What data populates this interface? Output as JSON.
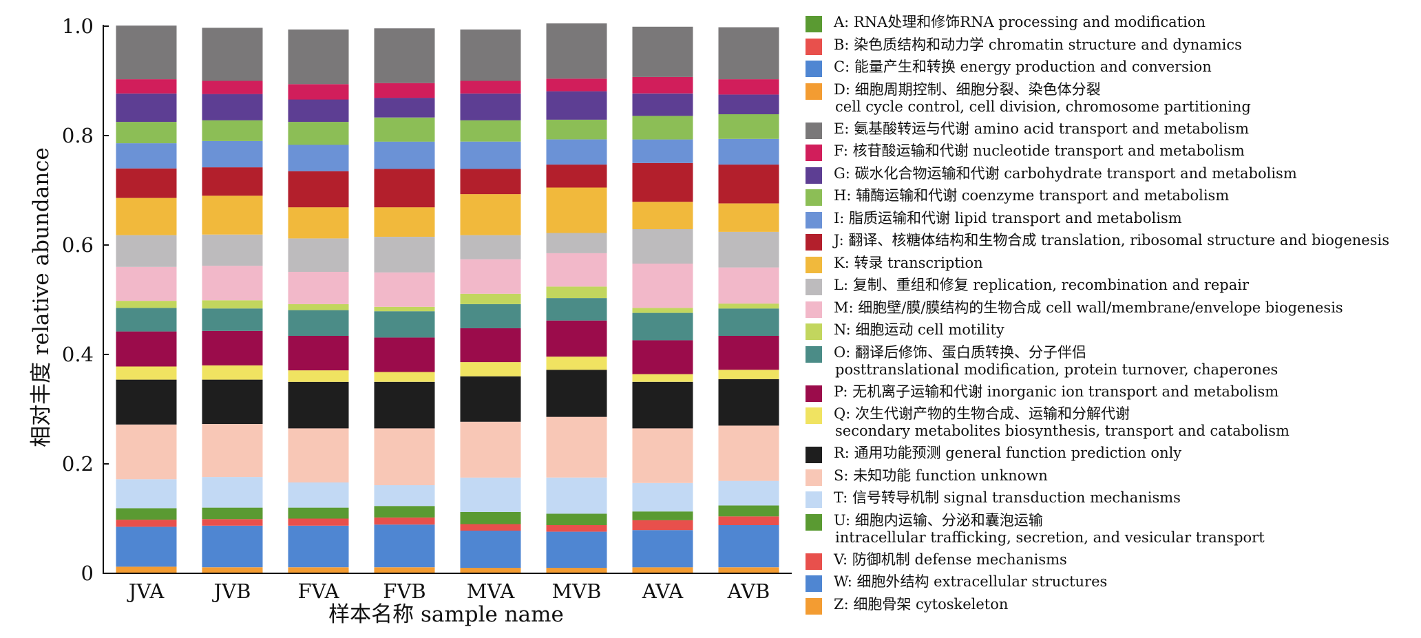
{
  "chart_data": {
    "type": "bar",
    "stacked": true,
    "normalized": true,
    "xlabel": "样本名称 sample name",
    "ylabel": "相对丰度 relative abundance",
    "ylim": [
      0,
      1.0
    ],
    "yticks": [
      "0",
      "0.2",
      "0.4",
      "0.6",
      "0.8",
      "1.0"
    ],
    "ytick_values": [
      0,
      0.2,
      0.4,
      0.6,
      0.8,
      1.0
    ],
    "categories": [
      "JVA",
      "JVB",
      "FVA",
      "FVB",
      "MVA",
      "MVB",
      "AVA",
      "AVB"
    ],
    "legend_position": "right",
    "series": [
      {
        "code": "Z",
        "name": "Z: 细胞骨架 cytoskeleton",
        "color": "#f39c32",
        "values": [
          0.012,
          0.011,
          0.011,
          0.011,
          0.01,
          0.01,
          0.011,
          0.011
        ]
      },
      {
        "code": "W",
        "name": "W: 细胞外结构 extracellular structures",
        "color": "#4f86d2",
        "values": [
          0.073,
          0.076,
          0.076,
          0.078,
          0.068,
          0.066,
          0.068,
          0.077
        ]
      },
      {
        "code": "V",
        "name": "V: 防御机制 defense mechanisms",
        "color": "#e8504c",
        "values": [
          0.013,
          0.012,
          0.013,
          0.013,
          0.012,
          0.012,
          0.018,
          0.016
        ]
      },
      {
        "code": "U",
        "name": "U: 细胞内运输、分泌和囊泡运输 intracellular trafficking, secretion, and vesicular transport",
        "color": "#5a9a32",
        "values": [
          0.021,
          0.021,
          0.02,
          0.021,
          0.022,
          0.021,
          0.016,
          0.02
        ]
      },
      {
        "code": "T",
        "name": "T: 信号转导机制 signal transduction mechanisms",
        "color": "#c2d9f4",
        "values": [
          0.053,
          0.056,
          0.046,
          0.038,
          0.063,
          0.066,
          0.052,
          0.045
        ]
      },
      {
        "code": "S",
        "name": "S: 未知功能 function unknown",
        "color": "#f8c7b6",
        "values": [
          0.1,
          0.097,
          0.099,
          0.104,
          0.102,
          0.111,
          0.1,
          0.101
        ]
      },
      {
        "code": "R",
        "name": "R: 通用功能预测 general function prediction only",
        "color": "#1e1e1e",
        "values": [
          0.082,
          0.081,
          0.085,
          0.085,
          0.083,
          0.086,
          0.085,
          0.085
        ]
      },
      {
        "code": "Q",
        "name": "Q: 次生代谢产物的生物合成、运输和分解代谢 secondary metabolites biosynthesis, transport and catabolism",
        "color": "#f0e361",
        "values": [
          0.024,
          0.026,
          0.021,
          0.018,
          0.026,
          0.024,
          0.014,
          0.017
        ]
      },
      {
        "code": "P",
        "name": "P: 无机离子运输和代谢 inorganic ion transport and metabolism",
        "color": "#9b0c4b",
        "values": [
          0.064,
          0.063,
          0.063,
          0.063,
          0.062,
          0.066,
          0.062,
          0.062
        ]
      },
      {
        "code": "O",
        "name": "O: 翻译后修饰、蛋白质转换、分子伴侣 posttranslational modification, protein turnover, chaperones",
        "color": "#4b8c87",
        "values": [
          0.043,
          0.041,
          0.047,
          0.048,
          0.044,
          0.041,
          0.05,
          0.05
        ]
      },
      {
        "code": "N",
        "name": "N: 细胞运动 cell motility",
        "color": "#c2d65e",
        "values": [
          0.013,
          0.015,
          0.011,
          0.008,
          0.019,
          0.021,
          0.009,
          0.009
        ]
      },
      {
        "code": "M",
        "name": "M: 细胞壁/膜/膜结构的生物合成 cell wall/membrane/envelope biogenesis",
        "color": "#f2b8c9",
        "values": [
          0.062,
          0.063,
          0.059,
          0.063,
          0.063,
          0.061,
          0.081,
          0.066
        ]
      },
      {
        "code": "L",
        "name": "L: 复制、重组和修复 replication, recombination and repair",
        "color": "#bdbbbd",
        "values": [
          0.058,
          0.057,
          0.061,
          0.065,
          0.044,
          0.037,
          0.063,
          0.065
        ]
      },
      {
        "code": "K",
        "name": "K: 转录 transcription",
        "color": "#f1b93c",
        "values": [
          0.068,
          0.071,
          0.057,
          0.054,
          0.075,
          0.083,
          0.05,
          0.052
        ]
      },
      {
        "code": "J",
        "name": "J: 翻译、核糖体结构和生物合成 translation, ribosomal structure and biogenesis",
        "color": "#b31f2c",
        "values": [
          0.054,
          0.052,
          0.066,
          0.07,
          0.046,
          0.042,
          0.071,
          0.071
        ]
      },
      {
        "code": "I",
        "name": "I: 脂质运输和代谢 lipid transport and metabolism",
        "color": "#6b92d6",
        "values": [
          0.046,
          0.048,
          0.048,
          0.05,
          0.05,
          0.046,
          0.043,
          0.047
        ]
      },
      {
        "code": "H",
        "name": "H: 辅酶运输和代谢 coenzyme transport and metabolism",
        "color": "#8cbe56",
        "values": [
          0.039,
          0.038,
          0.042,
          0.044,
          0.039,
          0.036,
          0.043,
          0.045
        ]
      },
      {
        "code": "G",
        "name": "G: 碳水化合物运输和代谢 carbohydrate transport and metabolism",
        "color": "#5d3e93",
        "values": [
          0.052,
          0.048,
          0.041,
          0.036,
          0.049,
          0.052,
          0.041,
          0.036
        ]
      },
      {
        "code": "F",
        "name": "F: 核苷酸运输和代谢 nucleotide transport and metabolism",
        "color": "#d11e5b",
        "values": [
          0.026,
          0.024,
          0.028,
          0.027,
          0.023,
          0.023,
          0.03,
          0.028
        ]
      },
      {
        "code": "E",
        "name": "E: 氨基酸转运与代谢 amino acid transport and metabolism",
        "color": "#7a7879",
        "values": [
          0.098,
          0.097,
          0.1,
          0.1,
          0.094,
          0.101,
          0.092,
          0.095
        ]
      },
      {
        "code": "D",
        "name": "D: 细胞周期控制、细胞分裂、染色体分裂 cell cycle control, cell division, chromosome partitioning",
        "color": "#f39c32",
        "values": [
          0,
          0,
          0,
          0,
          0,
          0,
          0,
          0
        ]
      },
      {
        "code": "C",
        "name": "C: 能量产生和转换 energy production and conversion",
        "color": "#4f86d2",
        "values": [
          0,
          0,
          0,
          0,
          0,
          0,
          0,
          0
        ]
      },
      {
        "code": "B",
        "name": "B: 染色质结构和动力学 chromatin structure and dynamics",
        "color": "#e8504c",
        "values": [
          0,
          0,
          0,
          0,
          0,
          0,
          0,
          0
        ]
      },
      {
        "code": "A",
        "name": "A: RNA处理和修饰RNA processing and modification",
        "color": "#5a9a32",
        "values": [
          0,
          0,
          0,
          0,
          0,
          0,
          0,
          0
        ]
      }
    ]
  },
  "legend": [
    {
      "line1": "A: RNA处理和修饰RNA processing and modification",
      "line2": "",
      "color": "#5a9a32"
    },
    {
      "line1": "B: 染色质结构和动力学 chromatin structure and dynamics",
      "line2": "",
      "color": "#e8504c"
    },
    {
      "line1": "C: 能量产生和转换 energy production and conversion",
      "line2": "",
      "color": "#4f86d2"
    },
    {
      "line1": "D: 细胞周期控制、细胞分裂、染色体分裂",
      "line2": "cell cycle control, cell division, chromosome partitioning",
      "color": "#f39c32"
    },
    {
      "line1": "E: 氨基酸转运与代谢 amino acid transport and metabolism",
      "line2": "",
      "color": "#7a7879"
    },
    {
      "line1": "F: 核苷酸运输和代谢 nucleotide transport and metabolism",
      "line2": "",
      "color": "#d11e5b"
    },
    {
      "line1": "G: 碳水化合物运输和代谢 carbohydrate transport and metabolism",
      "line2": "",
      "color": "#5d3e93"
    },
    {
      "line1": "H: 辅酶运输和代谢 coenzyme transport and metabolism",
      "line2": "",
      "color": "#8cbe56"
    },
    {
      "line1": "I: 脂质运输和代谢 lipid transport and metabolism",
      "line2": "",
      "color": "#6b92d6"
    },
    {
      "line1": "J: 翻译、核糖体结构和生物合成 translation, ribosomal structure and biogenesis",
      "line2": "",
      "color": "#b31f2c"
    },
    {
      "line1": "K: 转录 transcription",
      "line2": "",
      "color": "#f1b93c"
    },
    {
      "line1": "L: 复制、重组和修复 replication, recombination and repair",
      "line2": "",
      "color": "#bdbbbd"
    },
    {
      "line1": "M: 细胞壁/膜/膜结构的生物合成 cell wall/membrane/envelope biogenesis",
      "line2": "",
      "color": "#f2b8c9"
    },
    {
      "line1": "N: 细胞运动 cell motility",
      "line2": "",
      "color": "#c2d65e"
    },
    {
      "line1": "O: 翻译后修饰、蛋白质转换、分子伴侣",
      "line2": "posttranslational modification, protein turnover, chaperones",
      "color": "#4b8c87"
    },
    {
      "line1": "P: 无机离子运输和代谢 inorganic ion transport and metabolism",
      "line2": "",
      "color": "#9b0c4b"
    },
    {
      "line1": "Q: 次生代谢产物的生物合成、运输和分解代谢",
      "line2": "secondary metabolites biosynthesis, transport and catabolism",
      "color": "#f0e361"
    },
    {
      "line1": "R: 通用功能预测 general function prediction only",
      "line2": "",
      "color": "#1e1e1e"
    },
    {
      "line1": "S: 未知功能 function unknown",
      "line2": "",
      "color": "#f8c7b6"
    },
    {
      "line1": "T: 信号转导机制 signal transduction mechanisms",
      "line2": "",
      "color": "#c2d9f4"
    },
    {
      "line1": "U: 细胞内运输、分泌和囊泡运输",
      "line2": "intracellular trafficking, secretion, and vesicular transport",
      "color": "#5a9a32"
    },
    {
      "line1": "V: 防御机制 defense mechanisms",
      "line2": "",
      "color": "#e8504c"
    },
    {
      "line1": "W: 细胞外结构 extracellular structures",
      "line2": "",
      "color": "#4f86d2"
    },
    {
      "line1": "Z: 细胞骨架 cytoskeleton",
      "line2": "",
      "color": "#f39c32"
    }
  ]
}
